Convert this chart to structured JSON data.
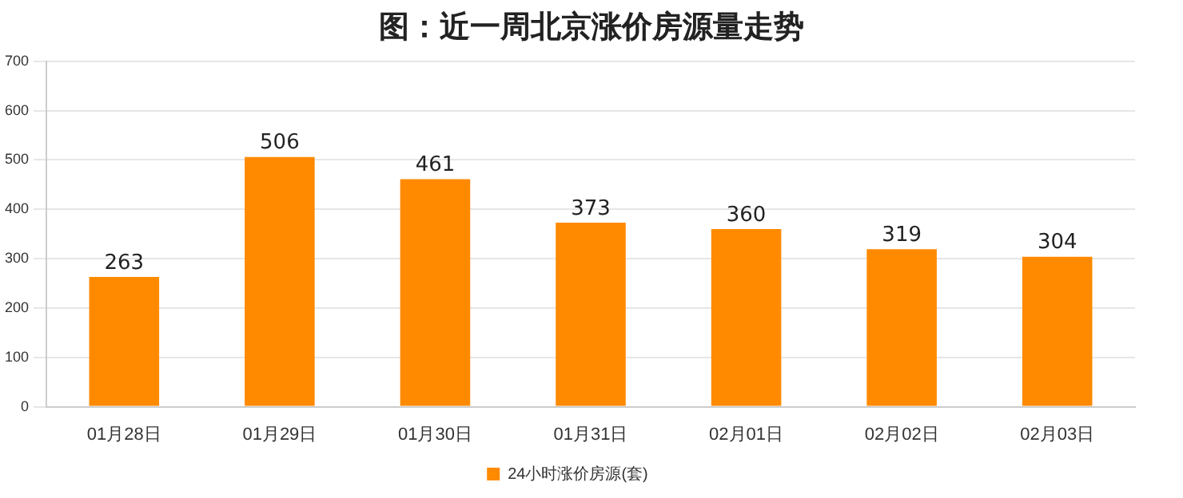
{
  "chart_data": {
    "type": "bar",
    "title": "图：近一周北京涨价房源量走势",
    "categories": [
      "01月28日",
      "01月29日",
      "01月30日",
      "01月31日",
      "02月01日",
      "02月02日",
      "02月03日"
    ],
    "series": [
      {
        "name": "24小时涨价房源(套)",
        "color": "#ff8a00",
        "values": [
          263,
          506,
          461,
          373,
          360,
          319,
          304
        ]
      }
    ],
    "ylim": [
      0,
      700
    ],
    "yticks": [
      0,
      100,
      200,
      300,
      400,
      500,
      600,
      700
    ],
    "grid": "y",
    "legend": "bottom",
    "data_labels": true
  }
}
